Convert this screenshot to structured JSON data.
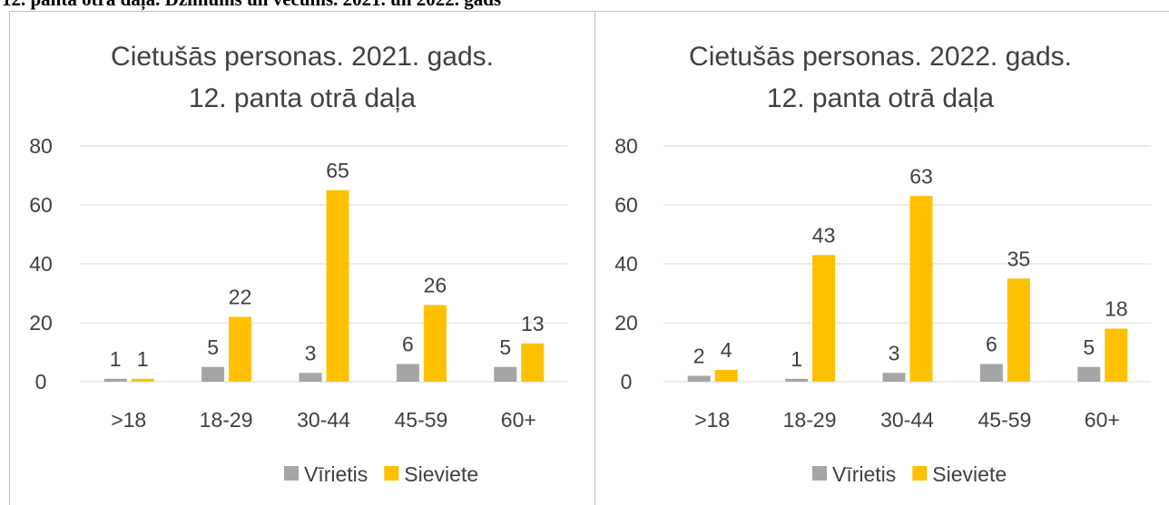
{
  "heading": "12. panta otrā daļa. Dzimums un vecums. 2021. un 2022. gads",
  "chart_data": [
    {
      "type": "bar",
      "title": [
        "Cietušās personas. 2021. gads.",
        "12. panta otrā daļa"
      ],
      "categories": [
        ">18",
        "18-29",
        "30-44",
        "45-59",
        "60+"
      ],
      "series": [
        {
          "name": "Vīrietis",
          "color": "#a5a5a5",
          "values": [
            1,
            5,
            3,
            6,
            5
          ]
        },
        {
          "name": "Sieviete",
          "color": "#ffc000",
          "values": [
            1,
            22,
            65,
            26,
            13
          ]
        }
      ],
      "ylim": [
        0,
        80
      ],
      "yticks": [
        0,
        20,
        40,
        60,
        80
      ],
      "grid": true,
      "legend": "bottom"
    },
    {
      "type": "bar",
      "title": [
        "Cietušās personas. 2022. gads.",
        "12. panta otrā daļa"
      ],
      "categories": [
        ">18",
        "18-29",
        "30-44",
        "45-59",
        "60+"
      ],
      "series": [
        {
          "name": "Vīrietis",
          "color": "#a5a5a5",
          "values": [
            2,
            1,
            3,
            6,
            5
          ]
        },
        {
          "name": "Sieviete",
          "color": "#ffc000",
          "values": [
            4,
            43,
            63,
            35,
            18
          ]
        }
      ],
      "ylim": [
        0,
        80
      ],
      "yticks": [
        0,
        20,
        40,
        60,
        80
      ],
      "grid": true,
      "legend": "bottom"
    }
  ]
}
